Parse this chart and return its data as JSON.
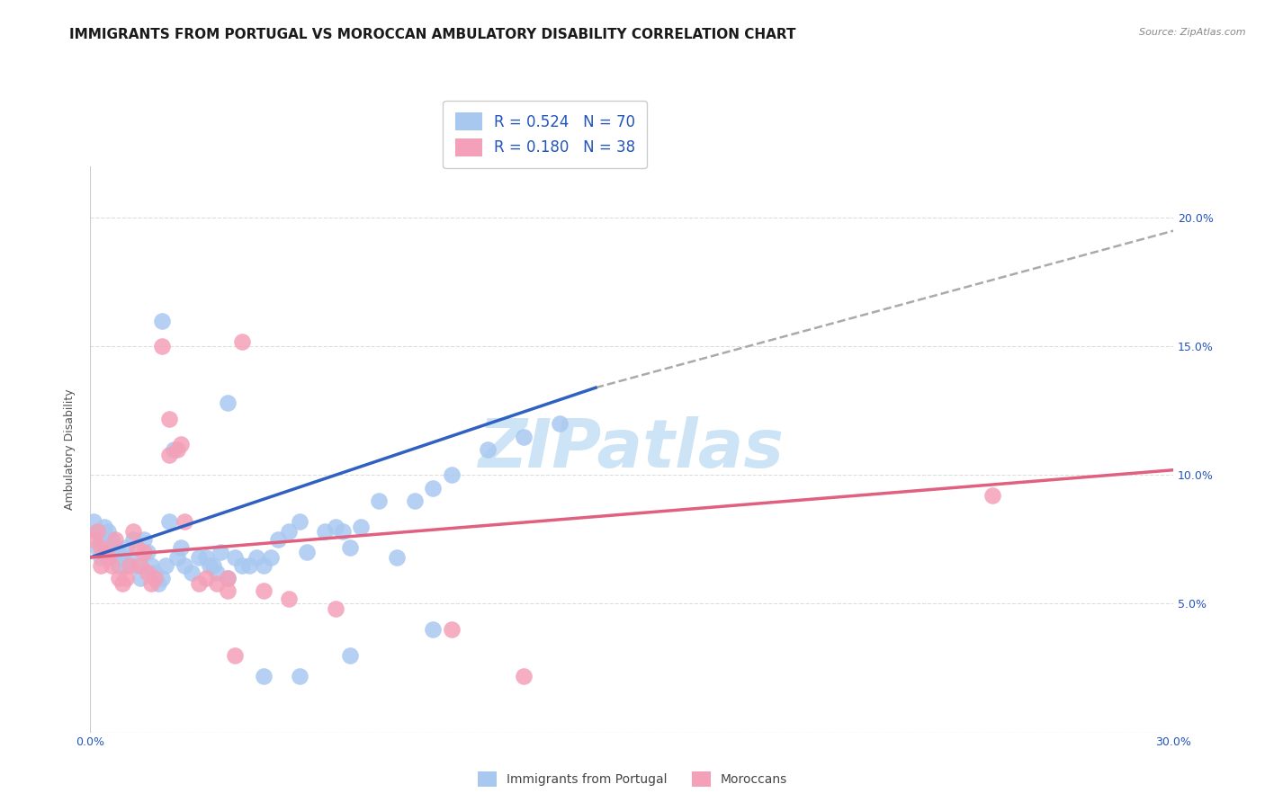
{
  "title": "IMMIGRANTS FROM PORTUGAL VS MOROCCAN AMBULATORY DISABILITY CORRELATION CHART",
  "source": "Source: ZipAtlas.com",
  "ylabel_label": "Ambulatory Disability",
  "xlim": [
    0.0,
    0.3
  ],
  "ylim": [
    0.0,
    0.22
  ],
  "blue_R": "0.524",
  "blue_N": "70",
  "pink_R": "0.180",
  "pink_N": "38",
  "blue_color": "#a8c8f0",
  "pink_color": "#f4a0b8",
  "blue_line_color": "#3060c0",
  "pink_line_color": "#e06080",
  "blue_line": [
    0.0,
    0.068,
    0.14,
    0.134
  ],
  "pink_line": [
    0.0,
    0.068,
    0.3,
    0.102
  ],
  "blue_dash": [
    0.14,
    0.134,
    0.3,
    0.195
  ],
  "blue_scatter": [
    [
      0.001,
      0.082
    ],
    [
      0.002,
      0.078
    ],
    [
      0.002,
      0.072
    ],
    [
      0.003,
      0.075
    ],
    [
      0.003,
      0.068
    ],
    [
      0.004,
      0.08
    ],
    [
      0.004,
      0.073
    ],
    [
      0.005,
      0.078
    ],
    [
      0.005,
      0.07
    ],
    [
      0.006,
      0.075
    ],
    [
      0.006,
      0.068
    ],
    [
      0.007,
      0.072
    ],
    [
      0.008,
      0.07
    ],
    [
      0.008,
      0.065
    ],
    [
      0.009,
      0.068
    ],
    [
      0.01,
      0.072
    ],
    [
      0.01,
      0.065
    ],
    [
      0.011,
      0.068
    ],
    [
      0.012,
      0.075
    ],
    [
      0.013,
      0.065
    ],
    [
      0.014,
      0.06
    ],
    [
      0.015,
      0.075
    ],
    [
      0.016,
      0.07
    ],
    [
      0.017,
      0.065
    ],
    [
      0.018,
      0.062
    ],
    [
      0.019,
      0.058
    ],
    [
      0.02,
      0.06
    ],
    [
      0.021,
      0.065
    ],
    [
      0.022,
      0.082
    ],
    [
      0.023,
      0.11
    ],
    [
      0.024,
      0.068
    ],
    [
      0.025,
      0.072
    ],
    [
      0.026,
      0.065
    ],
    [
      0.028,
      0.062
    ],
    [
      0.03,
      0.068
    ],
    [
      0.032,
      0.068
    ],
    [
      0.033,
      0.065
    ],
    [
      0.034,
      0.065
    ],
    [
      0.035,
      0.062
    ],
    [
      0.036,
      0.07
    ],
    [
      0.038,
      0.06
    ],
    [
      0.04,
      0.068
    ],
    [
      0.042,
      0.065
    ],
    [
      0.044,
      0.065
    ],
    [
      0.046,
      0.068
    ],
    [
      0.048,
      0.065
    ],
    [
      0.05,
      0.068
    ],
    [
      0.052,
      0.075
    ],
    [
      0.055,
      0.078
    ],
    [
      0.058,
      0.082
    ],
    [
      0.06,
      0.07
    ],
    [
      0.065,
      0.078
    ],
    [
      0.068,
      0.08
    ],
    [
      0.07,
      0.078
    ],
    [
      0.072,
      0.072
    ],
    [
      0.075,
      0.08
    ],
    [
      0.08,
      0.09
    ],
    [
      0.085,
      0.068
    ],
    [
      0.09,
      0.09
    ],
    [
      0.095,
      0.095
    ],
    [
      0.1,
      0.1
    ],
    [
      0.11,
      0.11
    ],
    [
      0.12,
      0.115
    ],
    [
      0.13,
      0.12
    ],
    [
      0.02,
      0.16
    ],
    [
      0.038,
      0.128
    ],
    [
      0.048,
      0.022
    ],
    [
      0.058,
      0.022
    ],
    [
      0.072,
      0.03
    ],
    [
      0.095,
      0.04
    ]
  ],
  "pink_scatter": [
    [
      0.001,
      0.075
    ],
    [
      0.002,
      0.078
    ],
    [
      0.003,
      0.065
    ],
    [
      0.003,
      0.072
    ],
    [
      0.004,
      0.07
    ],
    [
      0.005,
      0.068
    ],
    [
      0.006,
      0.065
    ],
    [
      0.007,
      0.075
    ],
    [
      0.008,
      0.06
    ],
    [
      0.009,
      0.058
    ],
    [
      0.01,
      0.06
    ],
    [
      0.011,
      0.065
    ],
    [
      0.012,
      0.078
    ],
    [
      0.013,
      0.072
    ],
    [
      0.014,
      0.065
    ],
    [
      0.015,
      0.07
    ],
    [
      0.016,
      0.062
    ],
    [
      0.017,
      0.058
    ],
    [
      0.018,
      0.06
    ],
    [
      0.02,
      0.15
    ],
    [
      0.022,
      0.122
    ],
    [
      0.022,
      0.108
    ],
    [
      0.024,
      0.11
    ],
    [
      0.025,
      0.112
    ],
    [
      0.026,
      0.082
    ],
    [
      0.03,
      0.058
    ],
    [
      0.032,
      0.06
    ],
    [
      0.035,
      0.058
    ],
    [
      0.038,
      0.055
    ],
    [
      0.038,
      0.06
    ],
    [
      0.042,
      0.152
    ],
    [
      0.048,
      0.055
    ],
    [
      0.055,
      0.052
    ],
    [
      0.068,
      0.048
    ],
    [
      0.1,
      0.04
    ],
    [
      0.25,
      0.092
    ],
    [
      0.04,
      0.03
    ],
    [
      0.12,
      0.022
    ]
  ],
  "watermark": "ZIPatlas",
  "watermark_color": "#cce4f5",
  "legend_label_color": "#2255bb",
  "title_color": "#1a1a1a",
  "grid_color": "#dddddd",
  "background_color": "#ffffff",
  "title_fontsize": 11,
  "axis_label_fontsize": 9,
  "tick_fontsize": 9,
  "source_fontsize": 8
}
